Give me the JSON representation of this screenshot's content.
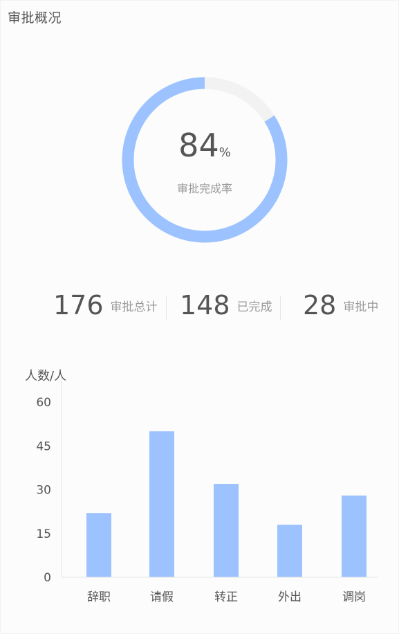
{
  "header": {
    "title": "审批概况"
  },
  "completion": {
    "value": "84",
    "unit": "%",
    "label": "审批完成率",
    "ring_color": "#9cc3ff",
    "track_color": "#f2f2f2",
    "fraction": 0.84
  },
  "stats": [
    {
      "value": "176",
      "label": "审批总计"
    },
    {
      "value": "148",
      "label": "已完成"
    },
    {
      "value": "28",
      "label": "审批中"
    }
  ],
  "chart_data": {
    "type": "bar",
    "ylabel": "人数/人",
    "categories": [
      "辞职",
      "请假",
      "转正",
      "外出",
      "调岗"
    ],
    "values": [
      22,
      50,
      32,
      18,
      28
    ],
    "yticks": [
      0,
      15,
      30,
      45,
      60
    ],
    "ylim": [
      0,
      60
    ],
    "bar_color": "#9cc3ff",
    "grid": false,
    "legend": "none"
  }
}
